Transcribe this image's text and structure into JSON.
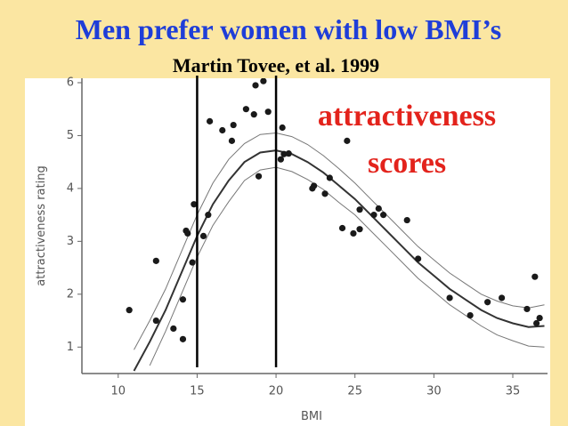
{
  "chart_data": {
    "type": "scatter",
    "title": "Men prefer women with low BMI’s",
    "subtitle": "Martin Tovee, et al. 1999",
    "annotation": [
      "attractiveness",
      "scores"
    ],
    "x_label": "BMI",
    "y_label": "attractiveness rating",
    "xlim": [
      7.7,
      37.2
    ],
    "ylim": [
      0.5,
      6.05
    ],
    "xticks": [
      10,
      15,
      20,
      25,
      30,
      35
    ],
    "yticks": [
      1,
      2,
      3,
      4,
      5,
      6
    ],
    "color": "#1a1a1a",
    "reference_lines": [
      15,
      20
    ],
    "x": [
      10.7,
      12.4,
      12.4,
      13.5,
      14.1,
      14.1,
      14.3,
      14.4,
      14.7,
      14.8,
      15.4,
      15.7,
      15.8,
      16.6,
      17.3,
      17.2,
      18.1,
      18.6,
      18.7,
      19.2,
      18.9,
      19.5,
      20.3,
      20.5,
      20.8,
      20.4,
      22.3,
      22.4,
      23.1,
      23.4,
      24.5,
      24.2,
      24.9,
      25.3,
      25.3,
      26.2,
      26.5,
      26.8,
      28.3,
      29.0,
      31.0,
      32.3,
      33.4,
      34.3,
      35.9,
      36.4,
      36.5,
      36.7
    ],
    "y": [
      1.7,
      2.63,
      1.5,
      1.35,
      1.9,
      1.15,
      3.2,
      3.15,
      2.6,
      3.7,
      3.1,
      3.5,
      5.27,
      5.1,
      5.2,
      4.9,
      5.5,
      5.4,
      5.95,
      6.03,
      4.23,
      5.45,
      4.55,
      4.65,
      4.66,
      5.15,
      4.0,
      4.05,
      3.9,
      4.2,
      4.9,
      3.25,
      3.15,
      3.23,
      3.6,
      3.5,
      3.62,
      3.5,
      3.4,
      2.67,
      1.93,
      1.6,
      1.85,
      1.93,
      1.72,
      2.33,
      1.45,
      1.55
    ],
    "fit": {
      "x": [
        11,
        12,
        13,
        14,
        15,
        16,
        17,
        18,
        19,
        20,
        21,
        22,
        23,
        24,
        25,
        26,
        27,
        28,
        29,
        30,
        31,
        32,
        33,
        34,
        35,
        36,
        37
      ],
      "center": [
        0.55,
        1.1,
        1.7,
        2.4,
        3.1,
        3.7,
        4.15,
        4.5,
        4.68,
        4.72,
        4.65,
        4.5,
        4.3,
        4.05,
        3.8,
        3.5,
        3.2,
        2.9,
        2.6,
        2.35,
        2.1,
        1.9,
        1.7,
        1.55,
        1.45,
        1.38,
        1.4
      ],
      "upper": [
        0.95,
        1.5,
        2.1,
        2.8,
        3.5,
        4.1,
        4.55,
        4.85,
        5.02,
        5.05,
        4.98,
        4.83,
        4.62,
        4.37,
        4.1,
        3.8,
        3.5,
        3.2,
        2.9,
        2.65,
        2.4,
        2.2,
        2.0,
        1.87,
        1.78,
        1.74,
        1.8
      ],
      "lower": [
        null,
        0.65,
        1.3,
        2.0,
        2.7,
        3.3,
        3.75,
        4.15,
        4.35,
        4.4,
        4.32,
        4.17,
        3.98,
        3.73,
        3.5,
        3.2,
        2.9,
        2.6,
        2.3,
        2.05,
        1.8,
        1.6,
        1.4,
        1.23,
        1.12,
        1.02,
        1.0
      ]
    }
  }
}
